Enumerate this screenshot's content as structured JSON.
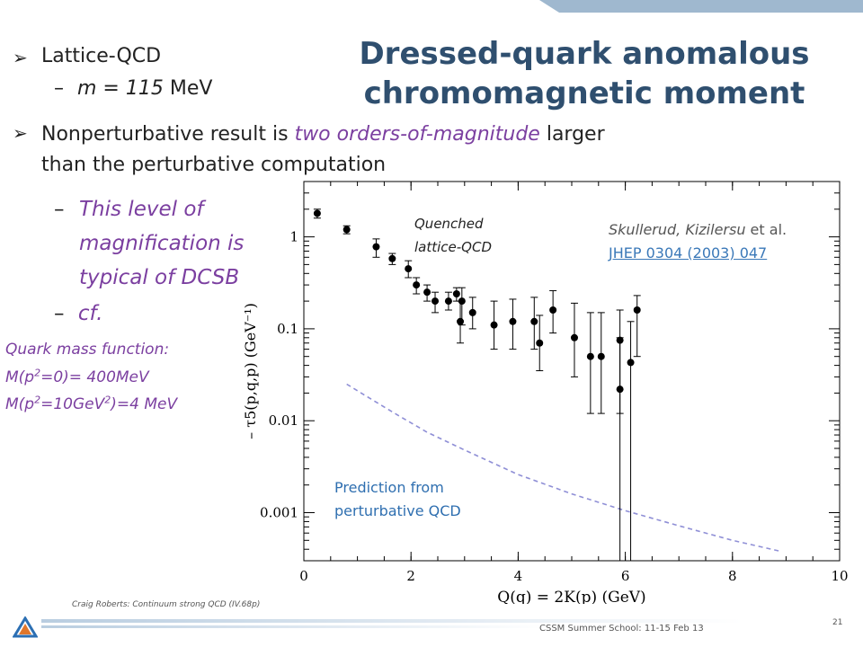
{
  "slide": {
    "title_line1": "Dressed-quark anomalous",
    "title_line2": "chromomagnetic moment",
    "bullets": {
      "b1": "Lattice-QCD",
      "b1_sub_m": "m = 115",
      "b1_sub_unit": " MeV",
      "b2_pre": "Nonperturbative result  is ",
      "b2_em": "two orders-of-magnitude",
      "b2_post": "  larger",
      "b2_line2": "than the perturbative computation",
      "b3_line1": "This level of",
      "b3_line2": "magnification  is",
      "b3_line3": "typical of DCSB",
      "b4": "cf."
    },
    "dash": "–",
    "arrow": "➢",
    "mass_function": {
      "line1": "Quark mass function:",
      "line2_a": "M(p",
      "line2_sup": "2",
      "line2_b": "=0)= 400MeV",
      "line3_a": "M(p",
      "line3_sup1": "2",
      "line3_b": "=10GeV",
      "line3_sup2": "2",
      "line3_c": ")=4 MeV"
    },
    "footer": {
      "left": "Craig Roberts: Continuum strong QCD (IV.68p)",
      "center": "CSSM Summer School: 11-15 Feb 13",
      "page": "21"
    }
  },
  "chart_data": {
    "type": "scatter",
    "xlabel": "Q(q) = 2K(p) (GeV)",
    "ylabel": "– τ5(p,q,p) (GeV⁻¹)",
    "xlim": [
      0,
      10
    ],
    "ylim": [
      0.0003,
      4
    ],
    "y_scale": "log",
    "x_ticks": [
      "0",
      "2",
      "4",
      "6",
      "8",
      "10"
    ],
    "y_ticks": [
      "0.001",
      "0.01",
      "0.1",
      "1"
    ],
    "series": [
      {
        "name": "Quenched lattice-QCD",
        "points": [
          {
            "x": 0.25,
            "y": 1.8,
            "lo": 1.6,
            "hi": 2.0
          },
          {
            "x": 0.8,
            "y": 1.2,
            "lo": 1.08,
            "hi": 1.32
          },
          {
            "x": 1.35,
            "y": 0.78,
            "lo": 0.6,
            "hi": 0.95
          },
          {
            "x": 1.65,
            "y": 0.58,
            "lo": 0.5,
            "hi": 0.66
          },
          {
            "x": 1.95,
            "y": 0.45,
            "lo": 0.36,
            "hi": 0.55
          },
          {
            "x": 2.1,
            "y": 0.3,
            "lo": 0.24,
            "hi": 0.36
          },
          {
            "x": 2.3,
            "y": 0.25,
            "lo": 0.2,
            "hi": 0.3
          },
          {
            "x": 2.45,
            "y": 0.2,
            "lo": 0.15,
            "hi": 0.25
          },
          {
            "x": 2.7,
            "y": 0.2,
            "lo": 0.16,
            "hi": 0.25
          },
          {
            "x": 2.85,
            "y": 0.24,
            "lo": 0.2,
            "hi": 0.28
          },
          {
            "x": 2.95,
            "y": 0.2,
            "lo": 0.11,
            "hi": 0.28
          },
          {
            "x": 2.92,
            "y": 0.12,
            "lo": 0.07,
            "hi": 0.2
          },
          {
            "x": 3.15,
            "y": 0.15,
            "lo": 0.1,
            "hi": 0.22
          },
          {
            "x": 3.55,
            "y": 0.11,
            "lo": 0.06,
            "hi": 0.2
          },
          {
            "x": 3.9,
            "y": 0.12,
            "lo": 0.06,
            "hi": 0.21
          },
          {
            "x": 4.3,
            "y": 0.12,
            "lo": 0.06,
            "hi": 0.22
          },
          {
            "x": 4.4,
            "y": 0.07,
            "lo": 0.035,
            "hi": 0.14
          },
          {
            "x": 4.65,
            "y": 0.16,
            "lo": 0.09,
            "hi": 0.26
          },
          {
            "x": 5.05,
            "y": 0.08,
            "lo": 0.03,
            "hi": 0.19
          },
          {
            "x": 5.35,
            "y": 0.05,
            "lo": 0.012,
            "hi": 0.15
          },
          {
            "x": 5.55,
            "y": 0.05,
            "lo": 0.012,
            "hi": 0.15
          },
          {
            "x": 5.9,
            "y": 0.075,
            "lo": 0.012,
            "hi": 0.16
          },
          {
            "x": 5.9,
            "y": 0.022,
            "lo": 0.0003,
            "hi": 0.08
          },
          {
            "x": 6.1,
            "y": 0.043,
            "lo": 0.0003,
            "hi": 0.12
          },
          {
            "x": 6.22,
            "y": 0.16,
            "lo": 0.05,
            "hi": 0.23
          }
        ]
      },
      {
        "name": "Prediction from perturbative QCD",
        "style": "dashed",
        "color": "#8f8fd6",
        "points": [
          {
            "x": 0.8,
            "y": 0.025
          },
          {
            "x": 1.2,
            "y": 0.018
          },
          {
            "x": 1.7,
            "y": 0.012
          },
          {
            "x": 2.3,
            "y": 0.0075
          },
          {
            "x": 3.0,
            "y": 0.0048
          },
          {
            "x": 4.0,
            "y": 0.0026
          },
          {
            "x": 5.0,
            "y": 0.0016
          },
          {
            "x": 6.0,
            "y": 0.00105
          },
          {
            "x": 7.0,
            "y": 0.00072
          },
          {
            "x": 8.0,
            "y": 0.0005
          },
          {
            "x": 8.9,
            "y": 0.00038
          }
        ]
      }
    ],
    "annotations": {
      "quenched_line1": "Quenched",
      "quenched_line2": "lattice-QCD",
      "ref_pre": "Skullerud, Kizilersu",
      "ref_etal": " et al.",
      "ref_link": "JHEP 0304 (2003) 047",
      "pred_line1": "Prediction from",
      "pred_line2": "perturbative QCD"
    },
    "colors": {
      "title": "#2f4f6f",
      "accent_purple": "#7b3fa0",
      "annotation_blue": "#2f6fb0",
      "link_blue": "#3a78b8",
      "reference_gray": "#555555"
    }
  }
}
